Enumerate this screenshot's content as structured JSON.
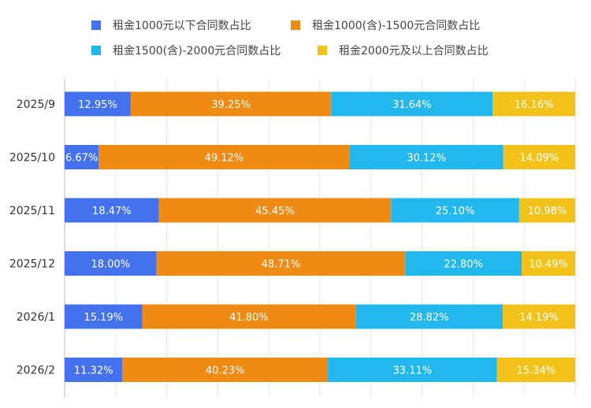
{
  "chart_data": {
    "type": "bar",
    "orientation": "horizontal",
    "stacked": "percent",
    "categories": [
      "2025/9",
      "2025/10",
      "2025/11",
      "2025/12",
      "2026/1",
      "2026/2"
    ],
    "series": [
      {
        "name": "租金1000元以下合同数占比",
        "color": "#4472ef",
        "values": [
          12.95,
          6.67,
          18.47,
          18.0,
          15.19,
          11.32
        ],
        "labels": [
          "12.95%",
          "6.67%",
          "18.47%",
          "18.00%",
          "15.19%",
          "11.32%"
        ]
      },
      {
        "name": "租金1000(含)-1500元合同数占比",
        "color": "#ef8a12",
        "values": [
          39.25,
          49.12,
          45.45,
          48.71,
          41.8,
          40.23
        ],
        "labels": [
          "39.25%",
          "49.12%",
          "45.45%",
          "48.71%",
          "41.80%",
          "40.23%"
        ]
      },
      {
        "name": "租金1500(含)-2000元合同数占比",
        "color": "#22b8ee",
        "values": [
          31.64,
          30.12,
          25.1,
          22.8,
          28.82,
          33.11
        ],
        "labels": [
          "31.64%",
          "30.12%",
          "25.10%",
          "22.80%",
          "28.82%",
          "33.11%"
        ]
      },
      {
        "name": "租金2000元及以上合同数占比",
        "color": "#f3c21a",
        "values": [
          16.16,
          14.09,
          10.98,
          10.49,
          14.19,
          15.34
        ],
        "labels": [
          "16.16%",
          "14.09%",
          "10.98%",
          "10.49%",
          "14.19%",
          "15.34%"
        ]
      }
    ],
    "xlim": [
      0,
      100
    ],
    "grid": true,
    "legend_position": "top"
  }
}
